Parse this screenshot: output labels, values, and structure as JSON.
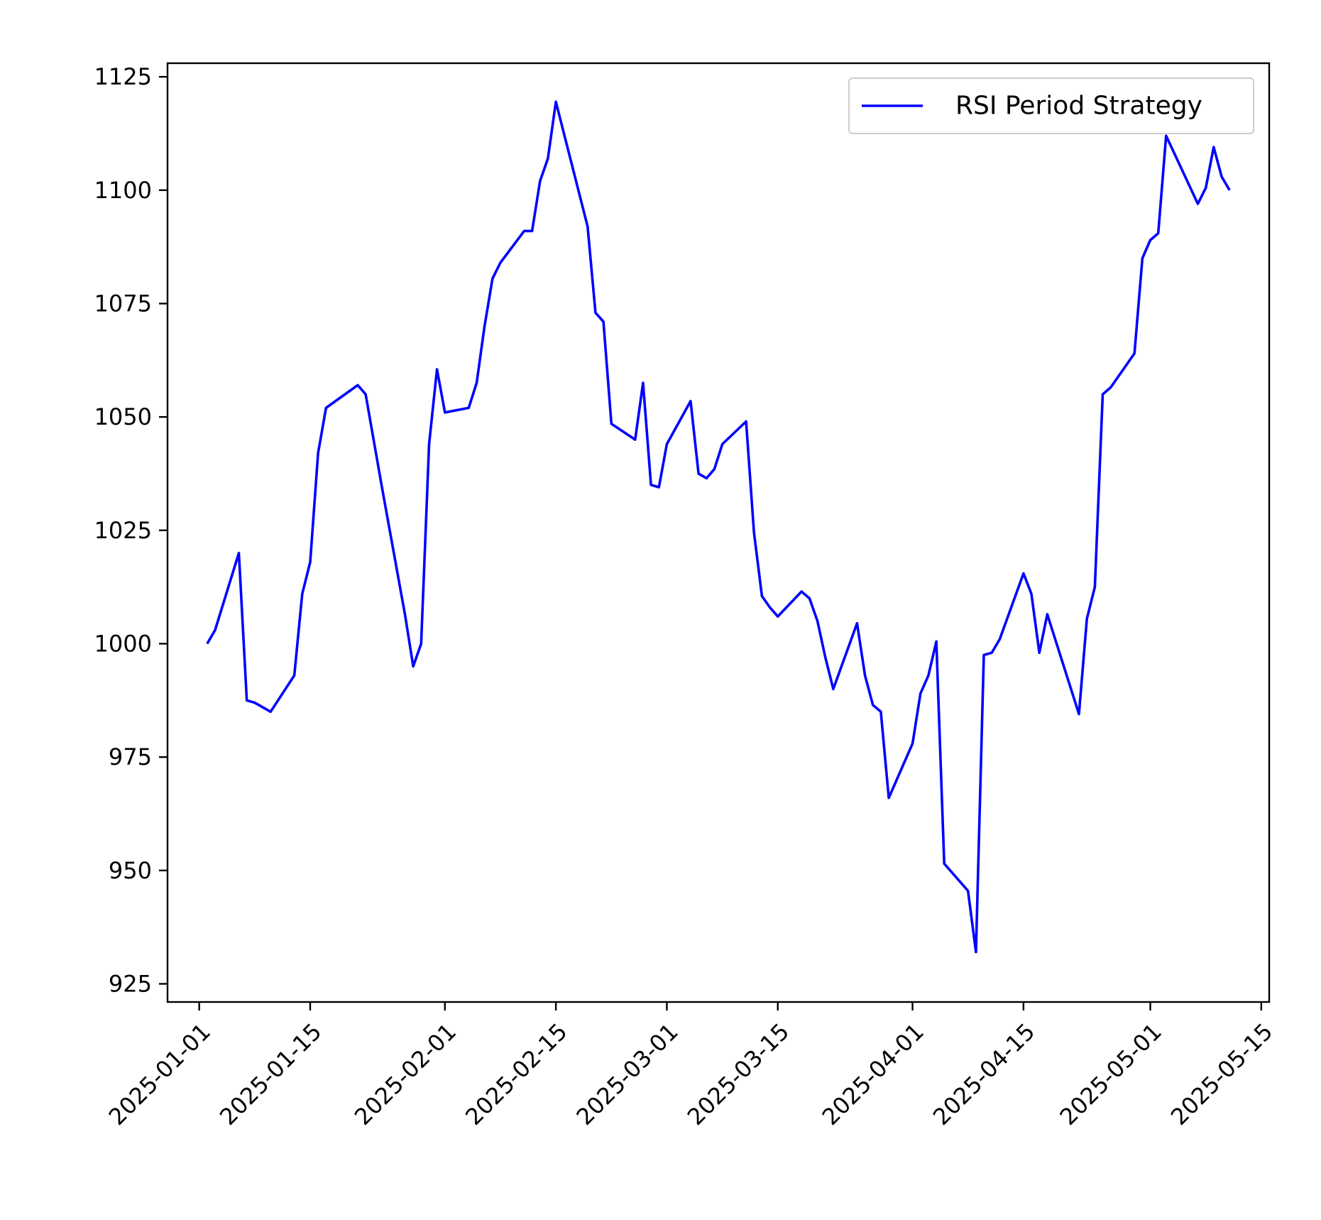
{
  "chart_data": {
    "type": "line",
    "title": "",
    "xlabel": "",
    "ylabel": "",
    "x_axis": {
      "type": "date",
      "range": [
        "2024-12-28",
        "2025-05-16"
      ],
      "ticks": [
        "2025-01-01",
        "2025-01-15",
        "2025-02-01",
        "2025-02-15",
        "2025-03-01",
        "2025-03-15",
        "2025-04-01",
        "2025-04-15",
        "2025-05-01",
        "2025-05-15"
      ]
    },
    "y_axis": {
      "range": [
        921,
        1128
      ],
      "ticks": [
        925,
        950,
        975,
        1000,
        1025,
        1050,
        1075,
        1100,
        1125
      ]
    },
    "grid": false,
    "legend": {
      "position": "upper right",
      "entries": [
        "RSI Period Strategy"
      ]
    },
    "series": [
      {
        "name": "RSI Period Strategy",
        "color": "#0000ff",
        "points": [
          [
            "2025-01-02",
            1000
          ],
          [
            "2025-01-03",
            1003
          ],
          [
            "2025-01-06",
            1020
          ],
          [
            "2025-01-07",
            987.5
          ],
          [
            "2025-01-08",
            987
          ],
          [
            "2025-01-10",
            985
          ],
          [
            "2025-01-13",
            993
          ],
          [
            "2025-01-14",
            1011
          ],
          [
            "2025-01-15",
            1018
          ],
          [
            "2025-01-16",
            1042
          ],
          [
            "2025-01-17",
            1052
          ],
          [
            "2025-01-21",
            1057
          ],
          [
            "2025-01-22",
            1055
          ],
          [
            "2025-01-24",
            1035
          ],
          [
            "2025-01-27",
            1006
          ],
          [
            "2025-01-28",
            995
          ],
          [
            "2025-01-29",
            1000
          ],
          [
            "2025-01-30",
            1044
          ],
          [
            "2025-01-31",
            1060.5
          ],
          [
            "2025-02-01",
            1051
          ],
          [
            "2025-02-04",
            1052
          ],
          [
            "2025-02-05",
            1057.5
          ],
          [
            "2025-02-06",
            1070
          ],
          [
            "2025-02-07",
            1080.5
          ],
          [
            "2025-02-08",
            1084
          ],
          [
            "2025-02-11",
            1091
          ],
          [
            "2025-02-12",
            1091
          ],
          [
            "2025-02-13",
            1102
          ],
          [
            "2025-02-14",
            1107
          ],
          [
            "2025-02-15",
            1119.5
          ],
          [
            "2025-02-19",
            1092
          ],
          [
            "2025-02-20",
            1073
          ],
          [
            "2025-02-21",
            1071
          ],
          [
            "2025-02-22",
            1048.5
          ],
          [
            "2025-02-25",
            1045
          ],
          [
            "2025-02-26",
            1057.5
          ],
          [
            "2025-02-27",
            1035
          ],
          [
            "2025-02-28",
            1034.5
          ],
          [
            "2025-03-01",
            1044
          ],
          [
            "2025-03-04",
            1053.5
          ],
          [
            "2025-03-05",
            1037.5
          ],
          [
            "2025-03-06",
            1036.5
          ],
          [
            "2025-03-07",
            1038.5
          ],
          [
            "2025-03-08",
            1044
          ],
          [
            "2025-03-11",
            1049
          ],
          [
            "2025-03-12",
            1024.5
          ],
          [
            "2025-03-13",
            1010.5
          ],
          [
            "2025-03-14",
            1008
          ],
          [
            "2025-03-15",
            1006
          ],
          [
            "2025-03-18",
            1011.5
          ],
          [
            "2025-03-19",
            1010
          ],
          [
            "2025-03-20",
            1005
          ],
          [
            "2025-03-21",
            997
          ],
          [
            "2025-03-22",
            990
          ],
          [
            "2025-03-25",
            1004.5
          ],
          [
            "2025-03-26",
            993
          ],
          [
            "2025-03-27",
            986.5
          ],
          [
            "2025-03-28",
            985
          ],
          [
            "2025-03-29",
            966
          ],
          [
            "2025-04-01",
            978
          ],
          [
            "2025-04-02",
            989
          ],
          [
            "2025-04-03",
            993
          ],
          [
            "2025-04-04",
            1000.5
          ],
          [
            "2025-04-05",
            951.5
          ],
          [
            "2025-04-08",
            945.5
          ],
          [
            "2025-04-09",
            932
          ],
          [
            "2025-04-10",
            997.5
          ],
          [
            "2025-04-11",
            998
          ],
          [
            "2025-04-12",
            1001
          ],
          [
            "2025-04-15",
            1015.5
          ],
          [
            "2025-04-16",
            1011
          ],
          [
            "2025-04-17",
            998
          ],
          [
            "2025-04-18",
            1006.5
          ],
          [
            "2025-04-22",
            984.5
          ],
          [
            "2025-04-23",
            1005.5
          ],
          [
            "2025-04-24",
            1012.5
          ],
          [
            "2025-04-25",
            1055
          ],
          [
            "2025-04-26",
            1056.5
          ],
          [
            "2025-04-29",
            1064
          ],
          [
            "2025-04-30",
            1085
          ],
          [
            "2025-05-01",
            1089
          ],
          [
            "2025-05-02",
            1090.5
          ],
          [
            "2025-05-03",
            1112
          ],
          [
            "2025-05-07",
            1097
          ],
          [
            "2025-05-08",
            1100.5
          ],
          [
            "2025-05-09",
            1109.5
          ],
          [
            "2025-05-10",
            1103
          ],
          [
            "2025-05-11",
            1100
          ]
        ]
      }
    ]
  }
}
